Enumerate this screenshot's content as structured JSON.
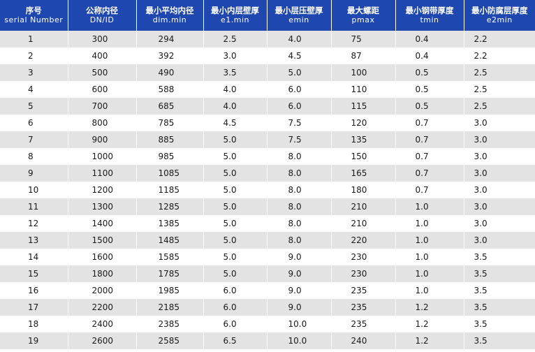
{
  "header": [
    {
      "cn": "序号",
      "en": "serial Number"
    },
    {
      "cn": "公称内径",
      "en": "DN/ID"
    },
    {
      "cn": "最小平均内径",
      "en": "dim.min"
    },
    {
      "cn": "最小内层壁厚",
      "en": "e1.min"
    },
    {
      "cn": "最小层压壁厚",
      "en": "emin"
    },
    {
      "cn": "最大螺距",
      "en": "pmax"
    },
    {
      "cn": "最小钢带厚度",
      "en": "tmin"
    },
    {
      "cn": "最小防腐层厚度",
      "en": "e2min"
    }
  ],
  "rows": [
    [
      "1",
      "300",
      "294",
      "2.5",
      "4.0",
      "75",
      "0.4",
      "2.2"
    ],
    [
      "2",
      "400",
      "392",
      "3.0",
      "4.5",
      "87",
      "0.4",
      "2.2"
    ],
    [
      "3",
      "500",
      "490",
      "3.5",
      "5.0",
      "100",
      "0.5",
      "2.5"
    ],
    [
      "4",
      "600",
      "588",
      "4.0",
      "6.0",
      "110",
      "0.5",
      "2.5"
    ],
    [
      "5",
      "700",
      "685",
      "4.0",
      "6.0",
      "115",
      "0.5",
      "2.5"
    ],
    [
      "6",
      "800",
      "785",
      "4.5",
      "7.5",
      "120",
      "0.7",
      "3.0"
    ],
    [
      "7",
      "900",
      "885",
      "5.0",
      "7.5",
      "135",
      "0.7",
      "3.0"
    ],
    [
      "8",
      "1000",
      "985",
      "5.0",
      "8.0",
      "150",
      "0.7",
      "3.0"
    ],
    [
      "9",
      "1100",
      "1085",
      "5.0",
      "8.0",
      "165",
      "0.7",
      "3.0"
    ],
    [
      "10",
      "1200",
      "1185",
      "5.0",
      "8.0",
      "180",
      "0.7",
      "3.0"
    ],
    [
      "11",
      "1300",
      "1285",
      "5.0",
      "8.0",
      "210",
      "1.0",
      "3.0"
    ],
    [
      "12",
      "1400",
      "1385",
      "5.0",
      "8.0",
      "210",
      "1.0",
      "3.0"
    ],
    [
      "13",
      "1500",
      "1485",
      "5.0",
      "8.0",
      "220",
      "1.0",
      "3.0"
    ],
    [
      "14",
      "1600",
      "1585",
      "5.0",
      "9.0",
      "230",
      "1.0",
      "3.5"
    ],
    [
      "15",
      "1800",
      "1785",
      "5.0",
      "9.0",
      "230",
      "1.0",
      "3.5"
    ],
    [
      "16",
      "2000",
      "1985",
      "6.0",
      "9.0",
      "235",
      "1.0",
      "3.5"
    ],
    [
      "17",
      "2200",
      "2185",
      "6.0",
      "9.0",
      "235",
      "1.2",
      "3.5"
    ],
    [
      "18",
      "2400",
      "2385",
      "6.0",
      "10.0",
      "235",
      "1.2",
      "3.5"
    ],
    [
      "19",
      "2600",
      "2585",
      "6.5",
      "10.0",
      "240",
      "1.2",
      "3.5"
    ]
  ],
  "colors": {
    "header_bg": "#1f47b0",
    "header_text": "#ffffff",
    "row_odd": "#e3e3e3",
    "row_even": "#ffffff"
  }
}
